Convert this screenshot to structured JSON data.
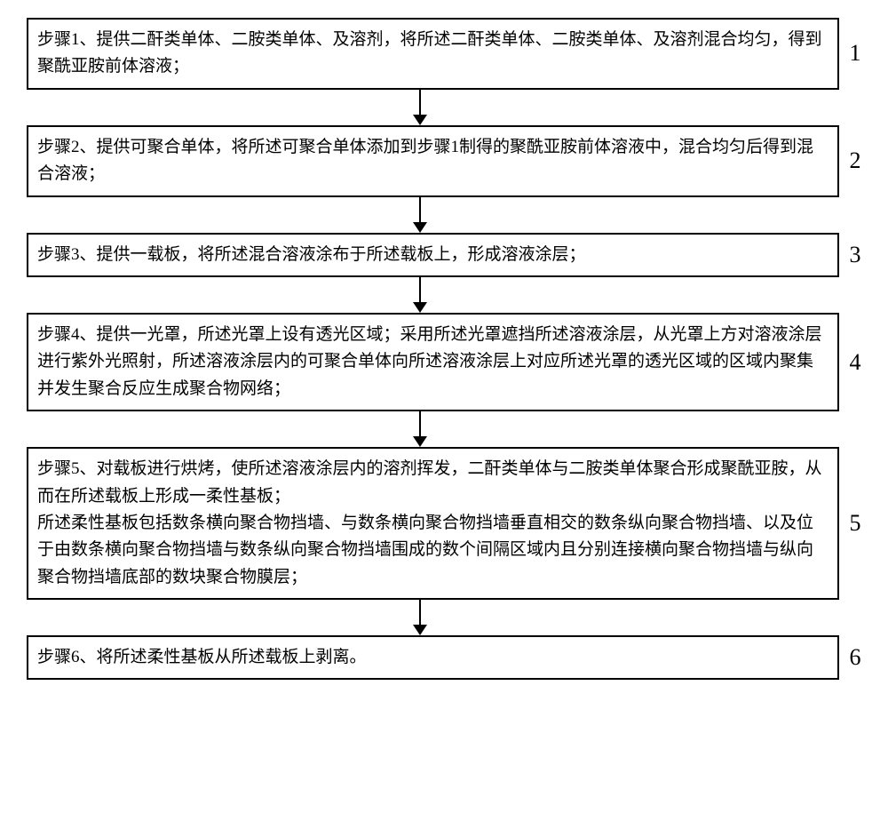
{
  "flowchart": {
    "type": "flowchart",
    "background_color": "#ffffff",
    "border_color": "#000000",
    "text_color": "#000000",
    "font_family": "SimSun",
    "box_font_size": 19,
    "label_font_size": 26,
    "line_height": 1.6,
    "border_width": 2,
    "arrow_head_width": 16,
    "arrow_head_height": 12,
    "connector_height": 40,
    "steps": [
      {
        "label": "1",
        "text": "步骤1、提供二酐类单体、二胺类单体、及溶剂，将所述二酐类单体、二胺类单体、及溶剂混合均匀，得到聚酰亚胺前体溶液；"
      },
      {
        "label": "2",
        "text": "步骤2、提供可聚合单体，将所述可聚合单体添加到步骤1制得的聚酰亚胺前体溶液中，混合均匀后得到混合溶液；"
      },
      {
        "label": "3",
        "text": "步骤3、提供一载板，将所述混合溶液涂布于所述载板上，形成溶液涂层；"
      },
      {
        "label": "4",
        "text": "步骤4、提供一光罩，所述光罩上设有透光区域；采用所述光罩遮挡所述溶液涂层，从光罩上方对溶液涂层进行紫外光照射，所述溶液涂层内的可聚合单体向所述溶液涂层上对应所述光罩的透光区域的区域内聚集并发生聚合反应生成聚合物网络；"
      },
      {
        "label": "5",
        "text": "步骤5、对载板进行烘烤，使所述溶液涂层内的溶剂挥发，二酐类单体与二胺类单体聚合形成聚酰亚胺，从而在所述载板上形成一柔性基板；\n所述柔性基板包括数条横向聚合物挡墙、与数条横向聚合物挡墙垂直相交的数条纵向聚合物挡墙、以及位于由数条横向聚合物挡墙与数条纵向聚合物挡墙围成的数个间隔区域内且分别连接横向聚合物挡墙与纵向聚合物挡墙底部的数块聚合物膜层；"
      },
      {
        "label": "6",
        "text": "步骤6、将所述柔性基板从所述载板上剥离。"
      }
    ]
  }
}
